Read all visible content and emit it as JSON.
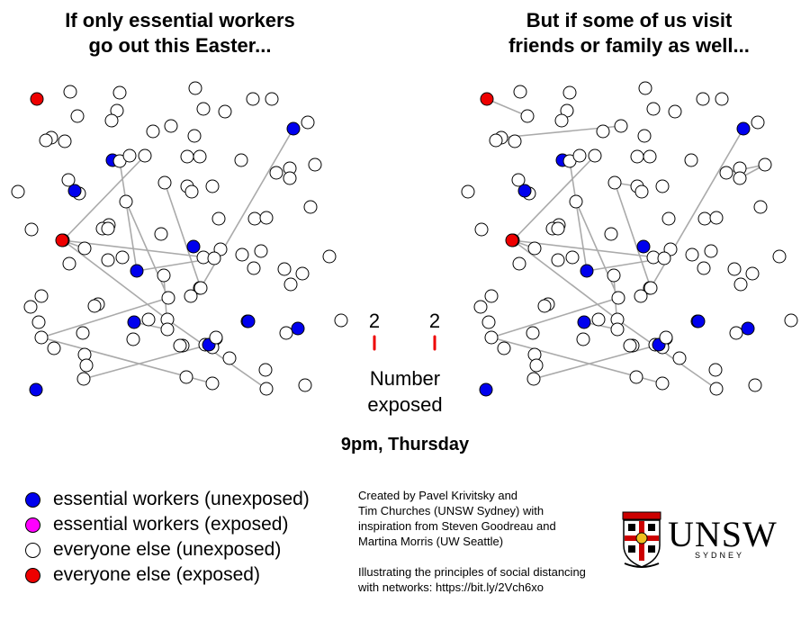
{
  "titles": {
    "left": [
      "If only essential workers",
      "go out this Easter..."
    ],
    "right": [
      "But if some of us visit",
      "friends or family as well..."
    ]
  },
  "time_label": "9pm, Thursday",
  "counter": {
    "left_value": "2",
    "right_value": "2",
    "label": [
      "Number",
      "exposed"
    ]
  },
  "legend": [
    {
      "label": "essential workers (unexposed)",
      "color": "#0000ee"
    },
    {
      "label": "essential workers (exposed)",
      "color": "#ff00ff"
    },
    {
      "label": "everyone else (unexposed)",
      "color": "#ffffff"
    },
    {
      "label": "everyone else (exposed)",
      "color": "#ee0000"
    }
  ],
  "credits": [
    [
      "Created by Pavel Krivitsky and",
      "Tim Churches (UNSW Sydney) with",
      "inspiration from Steven Goodreau and",
      "Martina Morris (UW Seattle)"
    ],
    [
      "Illustrating the principles of social distancing",
      "with networks: https://bit.ly/2Vch6xo"
    ]
  ],
  "logo": {
    "word": "UNSW",
    "sub": "SYDNEY"
  },
  "colors": {
    "essential_unexposed": "#0000ee",
    "essential_exposed": "#ff00ff",
    "other_unexposed": "#ffffff",
    "other_exposed": "#ee0000",
    "edge": "#aaaaaa",
    "tally": "#ee0000",
    "logo_red": "#cc0000"
  },
  "network": {
    "nodes": [
      {
        "id": 1,
        "t": "r"
      },
      {
        "id": 2,
        "t": "w"
      },
      {
        "id": 3,
        "t": "w"
      },
      {
        "id": 4,
        "t": "w"
      },
      {
        "id": 5,
        "t": "w"
      },
      {
        "id": 6,
        "t": "w"
      },
      {
        "id": 7,
        "t": "w"
      },
      {
        "id": 8,
        "t": "w"
      },
      {
        "id": 9,
        "t": "w"
      },
      {
        "id": 10,
        "t": "w"
      },
      {
        "id": 11,
        "t": "w"
      },
      {
        "id": 12,
        "t": "w"
      },
      {
        "id": 13,
        "t": "w"
      },
      {
        "id": 14,
        "t": "w"
      },
      {
        "id": 15,
        "t": "w"
      },
      {
        "id": 16,
        "t": "w"
      },
      {
        "id": 17,
        "t": "w"
      },
      {
        "id": 18,
        "t": "w"
      },
      {
        "id": 19,
        "t": "b"
      },
      {
        "id": 20,
        "t": "w"
      },
      {
        "id": 21,
        "t": "w"
      },
      {
        "id": 22,
        "t": "w"
      },
      {
        "id": 23,
        "t": "w"
      },
      {
        "id": 24,
        "t": "w"
      },
      {
        "id": 25,
        "t": "b"
      },
      {
        "id": 26,
        "t": "w"
      },
      {
        "id": 27,
        "t": "w"
      },
      {
        "id": 28,
        "t": "w"
      },
      {
        "id": 29,
        "t": "w"
      },
      {
        "id": 30,
        "t": "w"
      },
      {
        "id": 31,
        "t": "w"
      },
      {
        "id": 32,
        "t": "w"
      },
      {
        "id": 33,
        "t": "w"
      },
      {
        "id": 34,
        "t": "w"
      },
      {
        "id": 35,
        "t": "w"
      },
      {
        "id": 36,
        "t": "w"
      },
      {
        "id": 37,
        "t": "b"
      },
      {
        "id": 38,
        "t": "w"
      },
      {
        "id": 39,
        "t": "w"
      },
      {
        "id": 40,
        "t": "w"
      },
      {
        "id": 41,
        "t": "w"
      },
      {
        "id": 42,
        "t": "w"
      },
      {
        "id": 43,
        "t": "w"
      },
      {
        "id": 44,
        "t": "w"
      },
      {
        "id": 45,
        "t": "w"
      },
      {
        "id": 46,
        "t": "w"
      },
      {
        "id": 47,
        "t": "w"
      },
      {
        "id": 48,
        "t": "w"
      },
      {
        "id": 49,
        "t": "w"
      },
      {
        "id": 50,
        "t": "w"
      },
      {
        "id": 51,
        "t": "w"
      },
      {
        "id": 52,
        "t": "r"
      },
      {
        "id": 53,
        "t": "w"
      },
      {
        "id": 54,
        "t": "w"
      },
      {
        "id": 55,
        "t": "w"
      },
      {
        "id": 56,
        "t": "w"
      },
      {
        "id": 57,
        "t": "b"
      },
      {
        "id": 58,
        "t": "w"
      },
      {
        "id": 59,
        "t": "w"
      },
      {
        "id": 60,
        "t": "w"
      },
      {
        "id": 61,
        "t": "w"
      },
      {
        "id": 62,
        "t": "w"
      },
      {
        "id": 63,
        "t": "w"
      },
      {
        "id": 64,
        "t": "w"
      },
      {
        "id": 65,
        "t": "b"
      },
      {
        "id": 66,
        "t": "w"
      },
      {
        "id": 67,
        "t": "w"
      },
      {
        "id": 68,
        "t": "w"
      },
      {
        "id": 69,
        "t": "w"
      },
      {
        "id": 70,
        "t": "w"
      },
      {
        "id": 71,
        "t": "w"
      },
      {
        "id": 72,
        "t": "w"
      },
      {
        "id": 73,
        "t": "w"
      },
      {
        "id": 74,
        "t": "w"
      },
      {
        "id": 75,
        "t": "w"
      },
      {
        "id": 76,
        "t": "w"
      },
      {
        "id": 77,
        "t": "w"
      },
      {
        "id": 78,
        "t": "w"
      },
      {
        "id": 79,
        "t": "w"
      },
      {
        "id": 80,
        "t": "b"
      },
      {
        "id": 81,
        "t": "w"
      },
      {
        "id": 82,
        "t": "w"
      },
      {
        "id": 83,
        "t": "b"
      },
      {
        "id": 84,
        "t": "w"
      },
      {
        "id": 85,
        "t": "w"
      },
      {
        "id": 86,
        "t": "w"
      },
      {
        "id": 87,
        "t": "w"
      },
      {
        "id": 88,
        "t": "w"
      },
      {
        "id": 89,
        "t": "w"
      },
      {
        "id": 90,
        "t": "w"
      },
      {
        "id": 91,
        "t": "w"
      },
      {
        "id": 92,
        "t": "w"
      },
      {
        "id": 93,
        "t": "w"
      },
      {
        "id": 94,
        "t": "b"
      },
      {
        "id": 95,
        "t": "w"
      },
      {
        "id": 96,
        "t": "w"
      },
      {
        "id": 97,
        "t": "w"
      },
      {
        "id": 98,
        "t": "w"
      },
      {
        "id": 99,
        "t": "b"
      },
      {
        "id": 100,
        "t": "b"
      },
      {
        "id": 101,
        "t": "w"
      },
      {
        "id": 102,
        "t": "w"
      },
      {
        "id": 103,
        "t": "w"
      },
      {
        "id": 104,
        "t": "w"
      },
      {
        "id": 105,
        "t": "w"
      },
      {
        "id": 106,
        "t": "w"
      }
    ],
    "shared_ties": [
      [
        25,
        30
      ],
      [
        30,
        57
      ],
      [
        63,
        77
      ],
      [
        77,
        80
      ],
      [
        22,
        47
      ],
      [
        47,
        76
      ],
      [
        76,
        102
      ],
      [
        19,
        72
      ],
      [
        32,
        72
      ],
      [
        52,
        48
      ],
      [
        52,
        59
      ],
      [
        59,
        57
      ],
      [
        38,
        70
      ],
      [
        70,
        85
      ],
      [
        85,
        98
      ],
      [
        95,
        99
      ]
    ],
    "extra_ties": [
      [
        1,
        5
      ],
      [
        15,
        13
      ],
      [
        28,
        27
      ],
      [
        26,
        27
      ],
      [
        32,
        33
      ]
    ]
  }
}
